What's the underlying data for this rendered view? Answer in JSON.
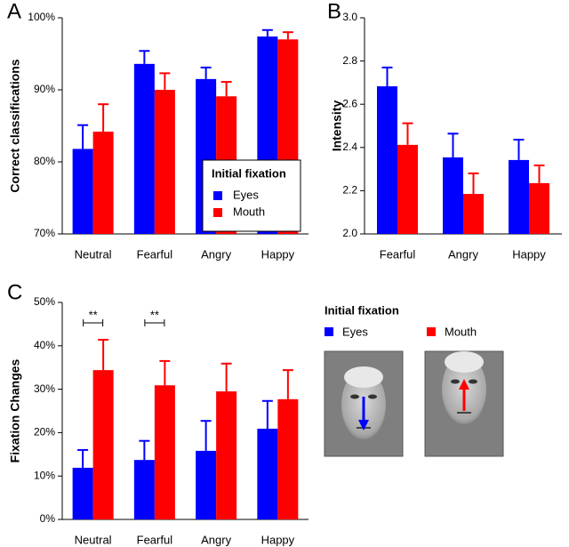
{
  "chart_data": [
    {
      "type": "bar",
      "panel": "A",
      "y_label": "Correct classifications",
      "categories": [
        "Neutral",
        "Fearful",
        "Angry",
        "Happy"
      ],
      "series": [
        {
          "name": "Eyes",
          "color": "#0000ff",
          "values": [
            81.8,
            93.6,
            91.5,
            97.4
          ],
          "errors": [
            3.3,
            1.8,
            1.6,
            0.9
          ]
        },
        {
          "name": "Mouth",
          "color": "#ff0000",
          "values": [
            84.2,
            90.0,
            89.1,
            97.0
          ],
          "errors": [
            3.8,
            2.3,
            2.0,
            1.0
          ]
        }
      ],
      "ylim": [
        70,
        100
      ],
      "yticks": [
        {
          "value": 70,
          "label": "70%"
        },
        {
          "value": 80,
          "label": "80%"
        },
        {
          "value": 90,
          "label": "90%"
        },
        {
          "value": 100,
          "label": "100%"
        }
      ],
      "legend_title": "Initial fixation"
    },
    {
      "type": "bar",
      "panel": "B",
      "y_label": "Intensity",
      "categories": [
        "Fearful",
        "Angry",
        "Happy"
      ],
      "series": [
        {
          "name": "Eyes",
          "color": "#0000ff",
          "values": [
            2.683,
            2.354,
            2.342
          ],
          "errors": [
            0.087,
            0.11,
            0.094
          ]
        },
        {
          "name": "Mouth",
          "color": "#ff0000",
          "values": [
            2.412,
            2.185,
            2.235
          ],
          "errors": [
            0.1,
            0.095,
            0.082
          ]
        }
      ],
      "ylim": [
        2.0,
        3.0
      ],
      "yticks": [
        {
          "value": 2,
          "label": "2.0"
        },
        2.2,
        2.4,
        2.6,
        2.8,
        {
          "value": 3,
          "label": "3.0"
        }
      ]
    },
    {
      "type": "bar",
      "panel": "C",
      "y_label": "Fixation Changes",
      "categories": [
        "Neutral",
        "Fearful",
        "Angry",
        "Happy"
      ],
      "series": [
        {
          "name": "Eyes",
          "color": "#0000ff",
          "values": [
            11.9,
            13.7,
            15.8,
            20.9
          ],
          "errors": [
            4.1,
            4.4,
            6.9,
            6.4
          ]
        },
        {
          "name": "Mouth",
          "color": "#ff0000",
          "values": [
            34.4,
            30.9,
            29.5,
            27.7
          ],
          "errors": [
            7.0,
            5.6,
            6.4,
            6.7
          ]
        }
      ],
      "significance": [
        "**",
        "**",
        null,
        null
      ],
      "ylim": [
        0,
        50
      ],
      "yticks": [
        {
          "value": 0,
          "label": "0%"
        },
        {
          "value": 10,
          "label": "10%"
        },
        {
          "value": 20,
          "label": "20%"
        },
        {
          "value": 30,
          "label": "30%"
        },
        {
          "value": 40,
          "label": "40%"
        },
        {
          "value": 50,
          "label": "50%"
        }
      ],
      "legend_title": "Initial fixation"
    }
  ]
}
